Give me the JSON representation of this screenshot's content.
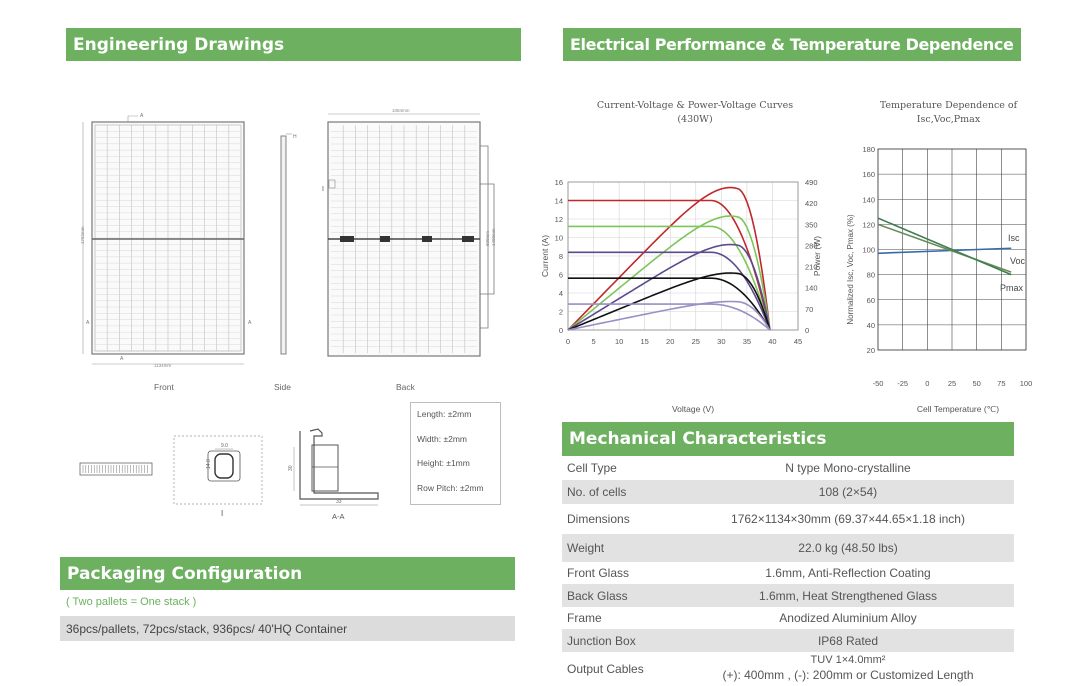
{
  "engineering": {
    "title": "Engineering Drawings",
    "view_labels": [
      "Front",
      "Side",
      "Back"
    ],
    "dims": {
      "width": "1134mm",
      "height": "1762mm",
      "back_width": "1084mm",
      "back_height1": "890mm",
      "back_height2": "1400mm",
      "mark_a": "A",
      "mark_h": "H",
      "mark_i": "I"
    },
    "detail": {
      "i_label": "I",
      "i_w": "9.0",
      "i_h": "14.0",
      "aa_label": "A-A",
      "aa_w": "33",
      "aa_h": "30"
    },
    "tolerances": [
      "Length: ±2mm",
      "Width: ±2mm",
      "Height: ±1mm",
      "Row Pitch: ±2mm"
    ]
  },
  "packaging": {
    "title": "Packaging Configuration",
    "note": "( Two pallets = One stack )",
    "details": "36pcs/pallets, 72pcs/stack, 936pcs/ 40'HQ Container"
  },
  "electrical": {
    "title": "Electrical Performance & Temperature Dependence"
  },
  "chart_data": [
    {
      "type": "line",
      "title": "Current-Voltage & Power-Voltage Curves (430W)",
      "xlabel": "Voltage (V)",
      "ylabel": "Current (A)",
      "y2label": "Power (W)",
      "x_ticks": [
        "0",
        "5",
        "10",
        "15",
        "20",
        "25",
        "30",
        "35",
        "40",
        "45"
      ],
      "y_ticks": [
        "0",
        "2",
        "4",
        "6",
        "8",
        "10",
        "12",
        "14",
        "16"
      ],
      "y2_ticks": [
        "0",
        "70",
        "140",
        "210",
        "280",
        "350",
        "420",
        "490"
      ],
      "xlim": [
        0,
        45
      ],
      "ylim": [
        0,
        16
      ],
      "y2lim": [
        0,
        490
      ],
      "voc": 39.5,
      "vmp": 33,
      "series": [
        {
          "isc": 14.0,
          "color": "#c0282a"
        },
        {
          "isc": 11.2,
          "color": "#7dc55a"
        },
        {
          "isc": 8.4,
          "color": "#5c4a8c"
        },
        {
          "isc": 5.6,
          "color": "#111111"
        },
        {
          "isc": 2.8,
          "color": "#9a8fc4"
        }
      ],
      "grid": true
    },
    {
      "type": "line",
      "title": "Temperature Dependence of Isc,Voc,Pmax",
      "xlabel": "Cell Temperature (℃)",
      "ylabel": "Normalized Isc, Voc, Pmax (%)",
      "x_ticks": [
        "-50",
        "-25",
        "0",
        "25",
        "50",
        "75",
        "100"
      ],
      "y_ticks": [
        "20",
        "40",
        "60",
        "80",
        "100",
        "120",
        "140",
        "160",
        "180"
      ],
      "xlim": [
        -50,
        100
      ],
      "ylim": [
        20,
        180
      ],
      "grid": true,
      "series": [
        {
          "name": "Isc",
          "color": "#3a6aa8",
          "x": [
            -50,
            85
          ],
          "y": [
            97,
            101
          ]
        },
        {
          "name": "Voc",
          "color": "#6a8a5a",
          "x": [
            -50,
            85
          ],
          "y": [
            120,
            82
          ]
        },
        {
          "name": "Pmax",
          "color": "#3f7f4f",
          "x": [
            -50,
            85
          ],
          "y": [
            125,
            80
          ]
        }
      ]
    }
  ],
  "mechanical": {
    "title": "Mechanical Characteristics",
    "rows": [
      {
        "label": "Cell Type",
        "value": "N type Mono-crystalline"
      },
      {
        "label": "No. of cells",
        "value": "108 (2×54)"
      },
      {
        "label": "Dimensions",
        "value": "1762×1134×30mm (69.37×44.65×1.18 inch)"
      },
      {
        "label": "Weight",
        "value": "22.0 kg (48.50 lbs)"
      },
      {
        "label": "Front Glass",
        "value": "1.6mm, Anti-Reflection Coating"
      },
      {
        "label": "Back Glass",
        "value": "1.6mm, Heat Strengthened Glass"
      },
      {
        "label": "Frame",
        "value": "Anodized Aluminium Alloy"
      },
      {
        "label": "Junction Box",
        "value": "IP68 Rated"
      },
      {
        "label": "Output Cables",
        "value": "TUV 1×4.0mm²",
        "value2": "(+): 400mm , (-): 200mm or Customized Length"
      }
    ]
  }
}
